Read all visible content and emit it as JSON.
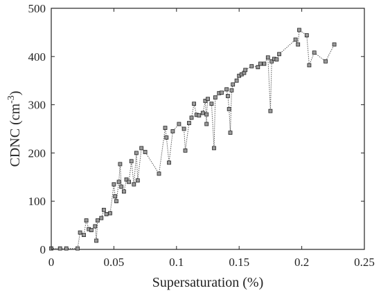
{
  "chart_data": {
    "type": "scatter",
    "title": "",
    "xlabel": "Supersaturation (%)",
    "ylabel_base": "CDNC (cm",
    "ylabel_sup": "-3",
    "ylabel_close": ")",
    "xlim": [
      0,
      0.25
    ],
    "ylim": [
      0,
      500
    ],
    "x_ticks": [
      {
        "value": 0,
        "label": "0"
      },
      {
        "value": 0.05,
        "label": "0.05"
      },
      {
        "value": 0.1,
        "label": "0.1"
      },
      {
        "value": 0.15,
        "label": "0.15"
      },
      {
        "value": 0.2,
        "label": "0.2"
      },
      {
        "value": 0.25,
        "label": "0.25"
      }
    ],
    "y_ticks": [
      {
        "value": 0,
        "label": "0"
      },
      {
        "value": 100,
        "label": "100"
      },
      {
        "value": 200,
        "label": "200"
      },
      {
        "value": 300,
        "label": "300"
      },
      {
        "value": 400,
        "label": "400"
      },
      {
        "value": 500,
        "label": "500"
      }
    ],
    "grid": false,
    "legend": "none",
    "colors": {
      "marker_fill": "#9a9a9a",
      "marker_stroke": "#222222",
      "line": "#555555",
      "axis": "#222222"
    },
    "series": [
      {
        "line_style": "dotted",
        "marker": "square",
        "points": [
          [
            0.0,
            2
          ],
          [
            0.007,
            2
          ],
          [
            0.012,
            2
          ],
          [
            0.021,
            2
          ],
          [
            0.023,
            35
          ],
          [
            0.026,
            30
          ],
          [
            0.028,
            60
          ],
          [
            0.03,
            42
          ],
          [
            0.032,
            40
          ],
          [
            0.035,
            48
          ],
          [
            0.036,
            18
          ],
          [
            0.037,
            60
          ],
          [
            0.04,
            65
          ],
          [
            0.042,
            82
          ],
          [
            0.044,
            73
          ],
          [
            0.047,
            75
          ],
          [
            0.05,
            135
          ],
          [
            0.051,
            110
          ],
          [
            0.052,
            100
          ],
          [
            0.054,
            140
          ],
          [
            0.055,
            177
          ],
          [
            0.056,
            130
          ],
          [
            0.058,
            120
          ],
          [
            0.06,
            145
          ],
          [
            0.062,
            140
          ],
          [
            0.064,
            183
          ],
          [
            0.066,
            135
          ],
          [
            0.068,
            200
          ],
          [
            0.069,
            143
          ],
          [
            0.072,
            210
          ],
          [
            0.075,
            202
          ],
          [
            0.086,
            157
          ],
          [
            0.091,
            252
          ],
          [
            0.092,
            232
          ],
          [
            0.094,
            180
          ],
          [
            0.097,
            245
          ],
          [
            0.102,
            260
          ],
          [
            0.106,
            250
          ],
          [
            0.107,
            205
          ],
          [
            0.11,
            262
          ],
          [
            0.112,
            273
          ],
          [
            0.114,
            302
          ],
          [
            0.116,
            279
          ],
          [
            0.118,
            278
          ],
          [
            0.121,
            283
          ],
          [
            0.123,
            308
          ],
          [
            0.124,
            260
          ],
          [
            0.124,
            280
          ],
          [
            0.125,
            312
          ],
          [
            0.128,
            302
          ],
          [
            0.13,
            210
          ],
          [
            0.131,
            315
          ],
          [
            0.134,
            324
          ],
          [
            0.136,
            325
          ],
          [
            0.14,
            332
          ],
          [
            0.141,
            318
          ],
          [
            0.142,
            291
          ],
          [
            0.143,
            242
          ],
          [
            0.144,
            330
          ],
          [
            0.145,
            342
          ],
          [
            0.148,
            350
          ],
          [
            0.15,
            360
          ],
          [
            0.152,
            363
          ],
          [
            0.154,
            366
          ],
          [
            0.155,
            372
          ],
          [
            0.16,
            380
          ],
          [
            0.165,
            378
          ],
          [
            0.167,
            385
          ],
          [
            0.17,
            385
          ],
          [
            0.173,
            398
          ],
          [
            0.175,
            287
          ],
          [
            0.176,
            390
          ],
          [
            0.178,
            395
          ],
          [
            0.18,
            394
          ],
          [
            0.182,
            405
          ],
          [
            0.195,
            435
          ],
          [
            0.197,
            425
          ],
          [
            0.198,
            455
          ],
          [
            0.204,
            444
          ],
          [
            0.206,
            382
          ],
          [
            0.21,
            408
          ],
          [
            0.219,
            390
          ],
          [
            0.226,
            425
          ]
        ]
      }
    ]
  }
}
